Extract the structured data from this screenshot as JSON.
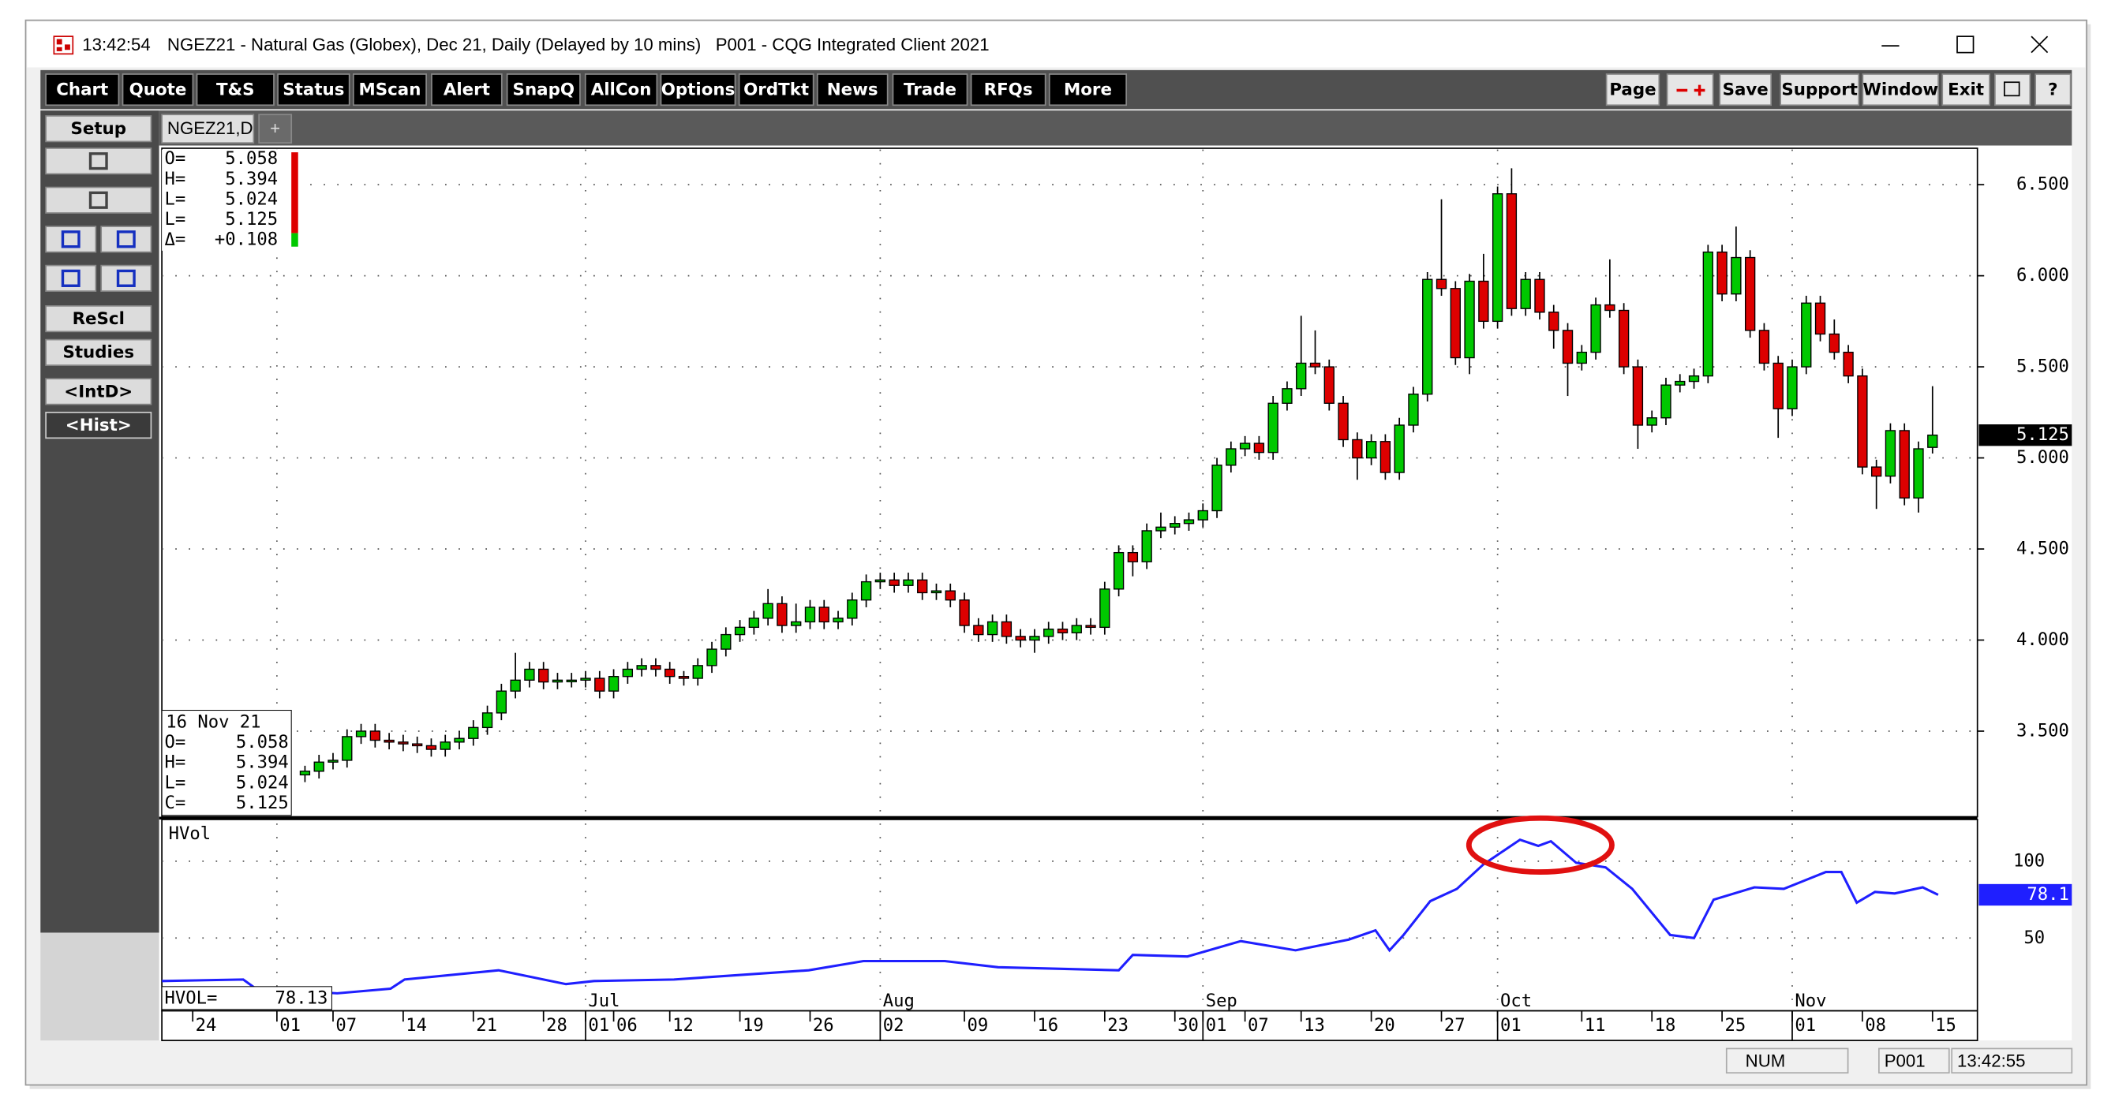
{
  "window": {
    "time": "13:42:54",
    "title": "NGEZ21 - Natural Gas (Globex), Dec 21, Daily (Delayed by 10 mins)   P001 - CQG Integrated Client 2021"
  },
  "toolbar": [
    "Chart",
    "Quote",
    "T&S",
    "Status",
    "MScan",
    "Alert",
    "SnapQ",
    "AllCon",
    "Options",
    "OrdTkt",
    "News",
    "Trade",
    "RFQs",
    "More"
  ],
  "toolbar_right": [
    "Page",
    "Save",
    "Support",
    "Window",
    "Exit",
    "?"
  ],
  "side_buttons": [
    "Setup",
    "ReScl",
    "Studies",
    "<IntD>",
    "<Hist>"
  ],
  "tabs": [
    "NGEZ21,D",
    "+"
  ],
  "status_bar": [
    "NUM",
    "P001",
    "13:42:55"
  ],
  "chart_data": {
    "type": "candlestick",
    "up_color": "#00c800",
    "down_color": "#dd0000",
    "x": [
      8,
      9,
      10,
      11,
      12,
      13,
      14,
      15,
      16,
      17,
      18,
      19,
      20,
      21,
      22,
      23,
      24,
      25,
      26,
      27,
      28,
      29,
      30,
      31,
      32,
      33,
      34,
      35,
      36,
      37,
      38,
      39,
      40,
      41,
      42,
      43,
      44,
      45,
      46,
      47,
      48,
      49,
      50,
      51,
      52,
      53,
      54,
      55,
      56,
      57,
      58,
      59,
      60,
      61,
      62,
      63,
      64,
      65,
      66,
      67,
      68,
      69,
      70,
      71,
      72,
      73,
      74,
      75,
      76,
      77,
      78,
      79,
      80,
      81,
      82,
      83,
      84,
      85,
      86,
      87,
      88,
      89,
      90,
      91,
      92,
      93,
      94,
      95,
      96,
      97,
      98,
      99,
      100,
      101,
      102,
      103,
      104,
      105,
      106,
      107,
      108,
      109,
      110,
      111,
      112,
      113,
      114,
      115,
      116,
      117,
      118,
      119,
      120,
      121,
      122,
      123,
      124
    ],
    "ohlc": [
      [
        3.26,
        3.31,
        3.22,
        3.28
      ],
      [
        3.28,
        3.37,
        3.24,
        3.33
      ],
      [
        3.33,
        3.38,
        3.29,
        3.34
      ],
      [
        3.34,
        3.51,
        3.3,
        3.47
      ],
      [
        3.47,
        3.54,
        3.43,
        3.5
      ],
      [
        3.5,
        3.54,
        3.41,
        3.45
      ],
      [
        3.45,
        3.49,
        3.4,
        3.44
      ],
      [
        3.44,
        3.48,
        3.39,
        3.43
      ],
      [
        3.43,
        3.47,
        3.38,
        3.42
      ],
      [
        3.42,
        3.46,
        3.36,
        3.4
      ],
      [
        3.4,
        3.48,
        3.36,
        3.44
      ],
      [
        3.44,
        3.5,
        3.4,
        3.46
      ],
      [
        3.46,
        3.56,
        3.42,
        3.52
      ],
      [
        3.52,
        3.64,
        3.48,
        3.6
      ],
      [
        3.6,
        3.76,
        3.56,
        3.72
      ],
      [
        3.72,
        3.93,
        3.68,
        3.78
      ],
      [
        3.78,
        3.88,
        3.74,
        3.84
      ],
      [
        3.84,
        3.88,
        3.73,
        3.77
      ],
      [
        3.77,
        3.82,
        3.73,
        3.78
      ],
      [
        3.78,
        3.82,
        3.74,
        3.78
      ],
      [
        3.78,
        3.83,
        3.74,
        3.79
      ],
      [
        3.79,
        3.83,
        3.68,
        3.72
      ],
      [
        3.72,
        3.84,
        3.68,
        3.8
      ],
      [
        3.8,
        3.88,
        3.76,
        3.84
      ],
      [
        3.84,
        3.9,
        3.8,
        3.86
      ],
      [
        3.86,
        3.9,
        3.8,
        3.84
      ],
      [
        3.84,
        3.88,
        3.76,
        3.8
      ],
      [
        3.8,
        3.83,
        3.75,
        3.79
      ],
      [
        3.79,
        3.9,
        3.75,
        3.86
      ],
      [
        3.86,
        3.99,
        3.82,
        3.95
      ],
      [
        3.95,
        4.07,
        3.91,
        4.03
      ],
      [
        4.03,
        4.11,
        3.99,
        4.07
      ],
      [
        4.07,
        4.16,
        4.03,
        4.12
      ],
      [
        4.12,
        4.28,
        4.08,
        4.2
      ],
      [
        4.2,
        4.24,
        4.04,
        4.08
      ],
      [
        4.08,
        4.2,
        4.04,
        4.1
      ],
      [
        4.1,
        4.22,
        4.06,
        4.18
      ],
      [
        4.18,
        4.22,
        4.06,
        4.1
      ],
      [
        4.1,
        4.16,
        4.06,
        4.12
      ],
      [
        4.12,
        4.26,
        4.08,
        4.22
      ],
      [
        4.22,
        4.36,
        4.18,
        4.32
      ],
      [
        4.32,
        4.37,
        4.28,
        4.33
      ],
      [
        4.33,
        4.37,
        4.26,
        4.3
      ],
      [
        4.3,
        4.37,
        4.26,
        4.33
      ],
      [
        4.33,
        4.37,
        4.22,
        4.26
      ],
      [
        4.26,
        4.31,
        4.22,
        4.27
      ],
      [
        4.27,
        4.31,
        4.18,
        4.22
      ],
      [
        4.22,
        4.26,
        4.04,
        4.08
      ],
      [
        4.08,
        4.12,
        3.99,
        4.03
      ],
      [
        4.03,
        4.14,
        3.99,
        4.1
      ],
      [
        4.1,
        4.14,
        3.98,
        4.02
      ],
      [
        4.02,
        4.06,
        3.96,
        4.0
      ],
      [
        4.0,
        4.06,
        3.93,
        4.02
      ],
      [
        4.02,
        4.1,
        3.98,
        4.06
      ],
      [
        4.06,
        4.1,
        4.0,
        4.04
      ],
      [
        4.04,
        4.12,
        4.0,
        4.08
      ],
      [
        4.08,
        4.12,
        4.03,
        4.07
      ],
      [
        4.07,
        4.32,
        4.03,
        4.28
      ],
      [
        4.28,
        4.52,
        4.24,
        4.48
      ],
      [
        4.48,
        4.52,
        4.35,
        4.43
      ],
      [
        4.43,
        4.64,
        4.39,
        4.6
      ],
      [
        4.6,
        4.7,
        4.56,
        4.62
      ],
      [
        4.62,
        4.68,
        4.58,
        4.64
      ],
      [
        4.64,
        4.7,
        4.6,
        4.66
      ],
      [
        4.66,
        4.75,
        4.62,
        4.71
      ],
      [
        4.71,
        5.0,
        4.67,
        4.96
      ],
      [
        4.96,
        5.09,
        4.92,
        5.05
      ],
      [
        5.05,
        5.12,
        5.01,
        5.08
      ],
      [
        5.08,
        5.12,
        4.99,
        5.03
      ],
      [
        5.03,
        5.34,
        4.99,
        5.3
      ],
      [
        5.3,
        5.42,
        5.26,
        5.38
      ],
      [
        5.38,
        5.78,
        5.34,
        5.52
      ],
      [
        5.52,
        5.7,
        5.46,
        5.5
      ],
      [
        5.5,
        5.54,
        5.26,
        5.3
      ],
      [
        5.3,
        5.34,
        5.06,
        5.1
      ],
      [
        5.1,
        5.14,
        4.88,
        5.0
      ],
      [
        5.0,
        5.13,
        4.96,
        5.09
      ],
      [
        5.09,
        5.13,
        4.88,
        4.92
      ],
      [
        4.92,
        5.22,
        4.88,
        5.18
      ],
      [
        5.18,
        5.39,
        5.14,
        5.35
      ],
      [
        5.35,
        6.02,
        5.31,
        5.98
      ],
      [
        5.98,
        6.42,
        5.89,
        5.93
      ],
      [
        5.93,
        5.97,
        5.51,
        5.55
      ],
      [
        5.55,
        6.01,
        5.46,
        5.97
      ],
      [
        5.97,
        6.12,
        5.71,
        5.75
      ],
      [
        5.75,
        6.49,
        5.71,
        6.45
      ],
      [
        6.45,
        6.59,
        5.78,
        5.82
      ],
      [
        5.82,
        6.02,
        5.78,
        5.98
      ],
      [
        5.98,
        6.02,
        5.76,
        5.8
      ],
      [
        5.8,
        5.84,
        5.6,
        5.7
      ],
      [
        5.7,
        5.74,
        5.34,
        5.52
      ],
      [
        5.52,
        5.62,
        5.48,
        5.58
      ],
      [
        5.58,
        5.88,
        5.54,
        5.84
      ],
      [
        5.84,
        6.09,
        5.77,
        5.81
      ],
      [
        5.81,
        5.85,
        5.46,
        5.5
      ],
      [
        5.5,
        5.54,
        5.05,
        5.18
      ],
      [
        5.18,
        5.26,
        5.14,
        5.22
      ],
      [
        5.22,
        5.44,
        5.18,
        5.4
      ],
      [
        5.4,
        5.46,
        5.36,
        5.42
      ],
      [
        5.42,
        5.49,
        5.38,
        5.45
      ],
      [
        5.45,
        6.17,
        5.41,
        6.13
      ],
      [
        6.13,
        6.17,
        5.86,
        5.9
      ],
      [
        5.9,
        6.27,
        5.86,
        6.1
      ],
      [
        6.1,
        6.14,
        5.66,
        5.7
      ],
      [
        5.7,
        5.74,
        5.48,
        5.52
      ],
      [
        5.52,
        5.56,
        5.11,
        5.27
      ],
      [
        5.27,
        5.54,
        5.23,
        5.5
      ],
      [
        5.5,
        5.89,
        5.46,
        5.85
      ],
      [
        5.85,
        5.89,
        5.64,
        5.68
      ],
      [
        5.68,
        5.76,
        5.54,
        5.58
      ],
      [
        5.58,
        5.62,
        5.41,
        5.45
      ],
      [
        5.45,
        5.49,
        4.91,
        4.95
      ],
      [
        4.95,
        4.99,
        4.72,
        4.9
      ],
      [
        4.9,
        5.19,
        4.86,
        5.15
      ],
      [
        5.15,
        5.19,
        4.74,
        4.78
      ],
      [
        4.78,
        5.09,
        4.7,
        5.05
      ],
      [
        5.058,
        5.394,
        5.024,
        5.125
      ]
    ],
    "xlim": [
      -2.2,
      127.2
    ],
    "xticks": [
      {
        "value": 0,
        "label": "24"
      },
      {
        "value": 6,
        "label": "01"
      },
      {
        "value": 10,
        "label": "07"
      },
      {
        "value": 15,
        "label": "14"
      },
      {
        "value": 20,
        "label": "21"
      },
      {
        "value": 25,
        "label": "28"
      },
      {
        "value": 28,
        "label": "01"
      },
      {
        "value": 30,
        "label": "06"
      },
      {
        "value": 34,
        "label": "12"
      },
      {
        "value": 39,
        "label": "19"
      },
      {
        "value": 44,
        "label": "26"
      },
      {
        "value": 49,
        "label": "02"
      },
      {
        "value": 55,
        "label": "09"
      },
      {
        "value": 60,
        "label": "16"
      },
      {
        "value": 65,
        "label": "23"
      },
      {
        "value": 70,
        "label": "30"
      },
      {
        "value": 72,
        "label": "01"
      },
      {
        "value": 75,
        "label": "07"
      },
      {
        "value": 79,
        "label": "13"
      },
      {
        "value": 84,
        "label": "20"
      },
      {
        "value": 89,
        "label": "27"
      },
      {
        "value": 93,
        "label": "01"
      },
      {
        "value": 99,
        "label": "11"
      },
      {
        "value": 104,
        "label": "18"
      },
      {
        "value": 109,
        "label": "25"
      },
      {
        "value": 114,
        "label": "01"
      },
      {
        "value": 119,
        "label": "08"
      },
      {
        "value": 124,
        "label": "15"
      }
    ],
    "xmonth_ticks": [
      {
        "value": 28,
        "label": "Jul"
      },
      {
        "value": 49,
        "label": "Aug"
      },
      {
        "value": 72,
        "label": "Sep"
      },
      {
        "value": 93,
        "label": "Oct"
      },
      {
        "value": 114,
        "label": "Nov"
      }
    ],
    "ylim": [
      3.03,
      6.7
    ],
    "yticks": [
      {
        "value": 3.5,
        "label": "3.500"
      },
      {
        "value": 4,
        "label": "4.000"
      },
      {
        "value": 4.5,
        "label": "4.500"
      },
      {
        "value": 5,
        "label": "5.000"
      },
      {
        "value": 5.5,
        "label": "5.500"
      },
      {
        "value": 6,
        "label": "6.000"
      },
      {
        "value": 6.5,
        "label": "6.500"
      }
    ],
    "grid": true,
    "last_price_label": "5.125",
    "info_top": [
      [
        "O=",
        "5.058"
      ],
      [
        "H=",
        "5.394"
      ],
      [
        "L=",
        "5.024"
      ],
      [
        "L=",
        "5.125"
      ],
      [
        "Δ=",
        "+0.108"
      ]
    ],
    "info_bottom_date": "16 Nov 21",
    "info_bottom": [
      [
        "O=",
        "5.058"
      ],
      [
        "H=",
        "5.394"
      ],
      [
        "L=",
        "5.024"
      ],
      [
        "C=",
        "5.125"
      ]
    ],
    "hvol": {
      "name": "HVol",
      "color": "#1f1fff",
      "axis": "y2",
      "x": [
        -2.2,
        3.6,
        4.5,
        10.3,
        14.1,
        15.1,
        21.8,
        26.6,
        28.6,
        34.3,
        43.9,
        47.8,
        53.6,
        57.4,
        66,
        67,
        70.9,
        74.7,
        78.6,
        82.4,
        84.3,
        85.3,
        86.3,
        88.2,
        90.1,
        92,
        94.6,
        95.9,
        96.8,
        98.6,
        100.7,
        102.6,
        105.3,
        107,
        108.4,
        111.3,
        113.4,
        116.4,
        117.5,
        118.6,
        119.9,
        121.3,
        123.3,
        124.4
      ],
      "values": [
        22,
        23,
        17,
        14,
        17,
        23,
        29,
        20,
        22,
        23,
        29,
        35,
        35,
        31,
        29,
        39,
        38,
        48,
        42,
        49,
        55,
        42,
        52,
        74,
        82,
        98,
        114,
        110,
        113,
        99,
        96,
        82,
        52,
        50,
        75,
        83,
        82,
        93,
        93,
        73,
        80,
        79,
        83,
        78.13
      ],
      "readout_label": "HVOL=",
      "readout": "78.13",
      "last_label": "78.1"
    },
    "y2lim": [
      2.6,
      127.2
    ],
    "y2ticks": [
      50,
      100
    ]
  }
}
